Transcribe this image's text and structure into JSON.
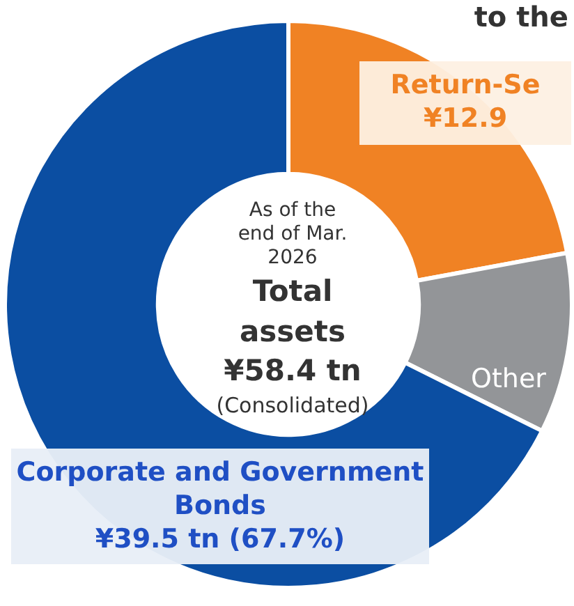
{
  "chart_data": {
    "type": "donut",
    "title": "to the",
    "categories": [
      "Return-Se",
      "Other",
      "Corporate and Government Bonds"
    ],
    "values": [
      12.9,
      6.0,
      39.5
    ],
    "colors": [
      "#f08224",
      "#939598",
      "#0b4ea2"
    ],
    "value_labels": [
      "¥12.9",
      null,
      "¥39.5 tn (67.7%)"
    ],
    "annotations": [
      "As of the end of Mar. 2026",
      "Total assets ¥58.4 tn",
      "(Consolidated)"
    ]
  }
}
